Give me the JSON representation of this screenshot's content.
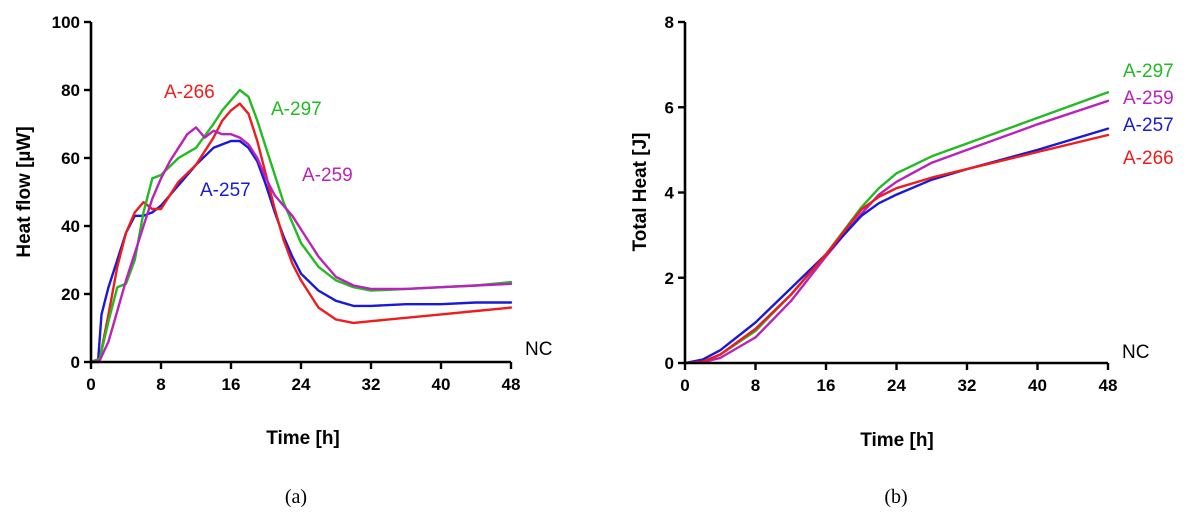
{
  "chart_data": [
    {
      "type": "line",
      "caption": "(a)",
      "xlabel": "Time [h]",
      "ylabel": "Heat flow [µW]",
      "xlim": [
        0,
        48
      ],
      "ylim": [
        0,
        100
      ],
      "xticks": [
        "0",
        "8",
        "16",
        "24",
        "32",
        "40",
        "48"
      ],
      "yticks": [
        "0",
        "20",
        "40",
        "60",
        "80",
        "100"
      ],
      "end_label": "NC",
      "series": [
        {
          "name": "A-257",
          "color": "#1a1ad6",
          "x": [
            0,
            0.8,
            1.2,
            2,
            3,
            4,
            5,
            6,
            7,
            8,
            10,
            12,
            14,
            15,
            16,
            17,
            18,
            19,
            20,
            21,
            22,
            23,
            24,
            26,
            28,
            30,
            32,
            36,
            40,
            44,
            48
          ],
          "y": [
            0,
            0,
            14,
            22,
            30,
            38,
            43,
            43,
            44,
            46,
            52,
            58,
            63,
            64,
            65,
            65,
            63,
            59,
            52,
            44,
            37,
            31,
            26,
            21,
            18,
            16.5,
            16.5,
            17,
            17,
            17.5,
            17.5
          ]
        },
        {
          "name": "A-266",
          "color": "#ee1c1c",
          "x": [
            0,
            1,
            2,
            3,
            4,
            5,
            6,
            7,
            8,
            10,
            12,
            14,
            15,
            16,
            17,
            18,
            19,
            20,
            21,
            22,
            23,
            24,
            26,
            28,
            30,
            32,
            36,
            40,
            44,
            48
          ],
          "y": [
            0,
            1,
            14,
            28,
            38,
            44,
            47,
            45,
            45,
            53,
            58,
            66,
            71,
            74,
            76,
            73,
            65,
            55,
            45,
            36,
            29,
            24,
            16,
            12.5,
            11.5,
            12,
            13,
            14,
            15,
            16
          ]
        },
        {
          "name": "A-297",
          "color": "#22bb22",
          "x": [
            0,
            1,
            2,
            3,
            4,
            5,
            6,
            7,
            8,
            10,
            12,
            14,
            15,
            16,
            17,
            18,
            19,
            20,
            21,
            22,
            23,
            24,
            26,
            28,
            30,
            32,
            36,
            40,
            44,
            48
          ],
          "y": [
            0,
            1,
            12,
            22,
            23,
            30,
            44,
            54,
            55,
            60,
            63,
            70,
            74,
            77,
            80,
            78,
            71,
            63,
            55,
            47,
            41,
            35,
            28,
            24,
            22,
            21,
            21.5,
            22,
            22.5,
            23.5
          ]
        },
        {
          "name": "A-259",
          "color": "#bb22bb",
          "x": [
            0,
            1,
            2,
            3,
            4,
            5,
            6,
            7,
            8,
            9,
            10,
            11,
            12,
            13,
            14,
            15,
            16,
            17,
            18,
            19,
            20,
            21,
            22,
            23,
            24,
            26,
            28,
            30,
            32,
            36,
            40,
            44,
            48
          ],
          "y": [
            0,
            0.5,
            6,
            15,
            24,
            32,
            40,
            48,
            54,
            59,
            63,
            67,
            69,
            66,
            68,
            67,
            67,
            66,
            64,
            60,
            54,
            49,
            46,
            43,
            39,
            31,
            25,
            22.5,
            21.5,
            21.5,
            22,
            22.5,
            23
          ]
        }
      ],
      "series_labels": [
        "A-266",
        "A-297",
        "A-259",
        "A-257"
      ]
    },
    {
      "type": "line",
      "caption": "(b)",
      "xlabel": "Time [h]",
      "ylabel": "Total Heat [J]",
      "xlim": [
        0,
        48
      ],
      "ylim": [
        0,
        8
      ],
      "xticks": [
        "0",
        "8",
        "16",
        "24",
        "32",
        "40",
        "48"
      ],
      "yticks": [
        "0",
        "2",
        "4",
        "6",
        "8"
      ],
      "end_label": "NC",
      "series": [
        {
          "name": "A-297",
          "color": "#22bb22",
          "x": [
            0,
            2,
            4,
            8,
            12,
            16,
            20,
            22,
            24,
            28,
            32,
            40,
            48
          ],
          "y": [
            0,
            0.03,
            0.2,
            0.75,
            1.6,
            2.55,
            3.65,
            4.1,
            4.45,
            4.85,
            5.15,
            5.75,
            6.35
          ]
        },
        {
          "name": "A-259",
          "color": "#bb22bb",
          "x": [
            0,
            2,
            4,
            8,
            12,
            16,
            20,
            22,
            24,
            28,
            32,
            40,
            48
          ],
          "y": [
            0,
            0.02,
            0.12,
            0.6,
            1.45,
            2.5,
            3.5,
            3.95,
            4.25,
            4.7,
            5.0,
            5.6,
            6.15
          ]
        },
        {
          "name": "A-257",
          "color": "#1a1ad6",
          "x": [
            0,
            2,
            4,
            8,
            12,
            16,
            20,
            22,
            24,
            28,
            32,
            40,
            48
          ],
          "y": [
            0,
            0.08,
            0.3,
            0.95,
            1.75,
            2.55,
            3.45,
            3.75,
            3.95,
            4.3,
            4.55,
            5.0,
            5.5
          ]
        },
        {
          "name": "A-266",
          "color": "#ee1c1c",
          "x": [
            0,
            2,
            4,
            8,
            12,
            16,
            20,
            22,
            24,
            28,
            32,
            40,
            48
          ],
          "y": [
            0,
            0.03,
            0.2,
            0.8,
            1.6,
            2.55,
            3.6,
            3.9,
            4.1,
            4.35,
            4.55,
            4.95,
            5.35
          ]
        }
      ],
      "series_labels": [
        "A-297",
        "A-259",
        "A-257",
        "A-266"
      ]
    }
  ]
}
